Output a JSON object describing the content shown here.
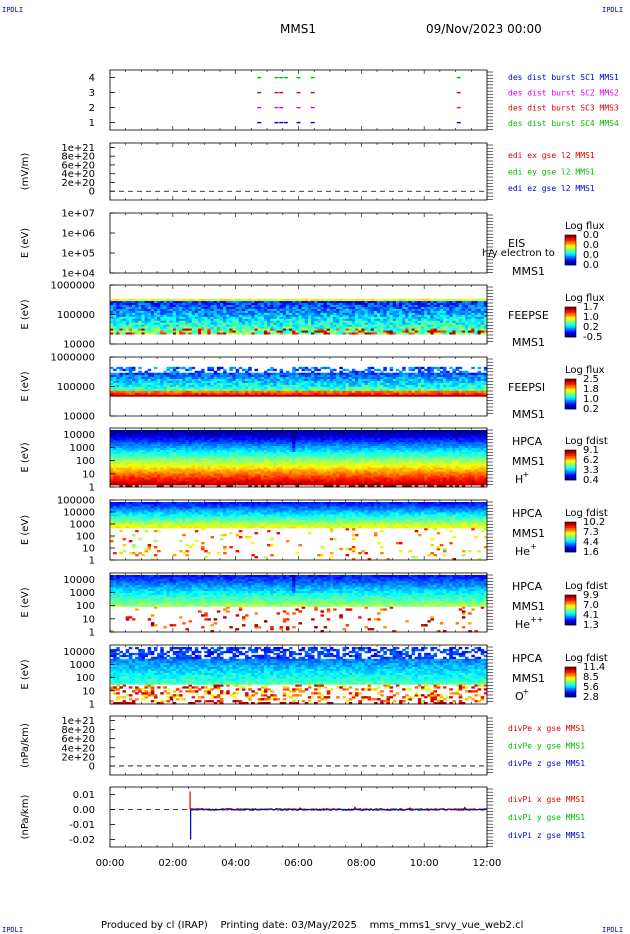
{
  "corner_label": "IPDLI",
  "header": {
    "spacecraft": "MMS1",
    "datetime": "09/Nov/2023 00:00"
  },
  "footer": {
    "produced_by": "Produced by cl (IRAP)",
    "printing_date": "Printing date: 03/May/2025",
    "file": "mms_mms1_srvy_vue_web2.cl"
  },
  "colors": {
    "blue": "#0000cc",
    "magenta": "#dd00dd",
    "red": "#dd0000",
    "green": "#00bb00"
  },
  "chart_data": {
    "type": "multi-panel time series and spectrograms",
    "time_axis": {
      "range_hours": [
        0,
        12
      ],
      "ticks": [
        0,
        2,
        4,
        6,
        8,
        10,
        12
      ],
      "tick_labels": [
        "00:00",
        "02:00",
        "04:00",
        "06:00",
        "08:00",
        "10:00",
        "12:00"
      ]
    },
    "panels": [
      {
        "id": "burst",
        "type": "scatter",
        "ylim": [
          0.5,
          4.5
        ],
        "ticks": [
          1,
          2,
          3,
          4
        ],
        "tick_labels": [
          "1",
          "2",
          "3",
          "4"
        ],
        "legend": [
          {
            "label": "des dist burst SC1 MMS1",
            "color": "#0000cc"
          },
          {
            "label": "des dist burst SC2 MMS2",
            "color": "#dd00dd"
          },
          {
            "label": "des dist burst SC3 MMS3",
            "color": "#dd0000"
          },
          {
            "label": "des dist burst SC4 MMS4",
            "color": "#00bb00"
          }
        ],
        "series": [
          {
            "name": "des dist burst SC1 MMS1",
            "level": 1,
            "color": "#0000cc",
            "times": [
              4.75,
              5.3,
              5.45,
              5.6,
              6.0,
              6.45,
              11.1
            ]
          },
          {
            "name": "des dist burst SC2 MMS2",
            "level": 2,
            "color": "#dd00dd",
            "times": [
              4.75,
              5.3,
              5.45,
              6.0,
              6.45,
              11.1
            ]
          },
          {
            "name": "des dist burst SC3 MMS3",
            "level": 3,
            "color": "#dd0000",
            "times": [
              4.75,
              5.3,
              5.45,
              6.0,
              6.45,
              11.1
            ]
          },
          {
            "name": "des dist burst SC4 MMS4",
            "level": 4,
            "color": "#00bb00",
            "times": [
              4.75,
              5.3,
              5.45,
              5.6,
              6.0,
              6.45,
              11.1
            ]
          }
        ]
      },
      {
        "id": "edi",
        "type": "line",
        "ylabel": "(mV/m)",
        "ylim": [
          -2e+20,
          1.1e+21
        ],
        "ticks": [
          0,
          2e+20,
          4e+20,
          6e+20,
          8e+20,
          1e+21
        ],
        "tick_labels": [
          "0",
          "2e+20",
          "4e+20",
          "6e+20",
          "8e+20",
          "1e+21"
        ],
        "dashed_zero": true,
        "legend": [
          {
            "label": "edi ex gse l2 MMS1",
            "color": "#dd0000"
          },
          {
            "label": "edi ey gse l2 MMS1",
            "color": "#00bb00"
          },
          {
            "label": "edi ez gse l2 MMS1",
            "color": "#0000cc"
          }
        ]
      },
      {
        "id": "eis",
        "type": "heatmap",
        "ylabel": "E (eV)",
        "scale": "log",
        "ylim": [
          10000.0,
          10000000.0
        ],
        "ticks": [
          10000.0,
          100000.0,
          1000000.0,
          10000000.0
        ],
        "tick_labels": [
          "1e+04",
          "1e+05",
          "1e+06",
          "1e+07"
        ],
        "labels": [
          "EIS",
          "MMS1"
        ],
        "overlay_text": "h/y electron to",
        "colorbar": {
          "title": "Log flux",
          "ticks": [
            "0.0",
            "0.0",
            "0.0",
            "0.0"
          ]
        }
      },
      {
        "id": "feepse",
        "type": "heatmap",
        "ylabel": "E (eV)",
        "scale": "log",
        "ylim": [
          10000,
          1000000
        ],
        "ticks": [
          10000,
          100000,
          1000000
        ],
        "tick_labels": [
          "10000",
          "100000",
          "1000000"
        ],
        "labels": [
          "FEEPSE",
          "MMS1"
        ],
        "colorbar": {
          "title": "Log flux",
          "ticks": [
            "1.7",
            "1.0",
            "0.2",
            "-0.5"
          ]
        }
      },
      {
        "id": "feepsi",
        "type": "heatmap",
        "ylabel": "E (eV)",
        "scale": "log",
        "ylim": [
          10000,
          1000000
        ],
        "ticks": [
          10000,
          100000,
          1000000
        ],
        "tick_labels": [
          "10000",
          "100000",
          "1000000"
        ],
        "labels": [
          "FEEPSI",
          "MMS1"
        ],
        "colorbar": {
          "title": "Log flux",
          "ticks": [
            "2.5",
            "1.8",
            "1.0",
            "0.2"
          ]
        }
      },
      {
        "id": "hpca_h",
        "type": "heatmap",
        "ylabel": "E (eV)",
        "scale": "log",
        "ylim": [
          1,
          30000
        ],
        "ticks": [
          1,
          10,
          100,
          1000,
          10000
        ],
        "tick_labels": [
          "1",
          "10",
          "100",
          "1000",
          "10000"
        ],
        "labels": [
          "HPCA",
          "MMS1"
        ],
        "species": "H",
        "species_sup": "+",
        "colorbar": {
          "title": "Log fdist",
          "ticks": [
            "9.1",
            "6.2",
            "3.3",
            "0.4"
          ]
        }
      },
      {
        "id": "hpca_he",
        "type": "heatmap",
        "ylabel": "E (eV)",
        "scale": "log",
        "ylim": [
          1,
          100000
        ],
        "ticks": [
          1,
          10,
          100,
          1000,
          10000,
          100000
        ],
        "tick_labels": [
          "1",
          "10",
          "100",
          "1000",
          "10000",
          "100000"
        ],
        "labels": [
          "HPCA",
          "MMS1"
        ],
        "species": "He",
        "species_sup": "+",
        "colorbar": {
          "title": "Log fdist",
          "ticks": [
            "10.2",
            "7.3",
            "4.4",
            "1.6"
          ]
        }
      },
      {
        "id": "hpca_hepp",
        "type": "heatmap",
        "ylabel": "E (eV)",
        "scale": "log",
        "ylim": [
          1,
          30000
        ],
        "ticks": [
          1,
          10,
          100,
          1000,
          10000
        ],
        "tick_labels": [
          "1",
          "10",
          "100",
          "1000",
          "10000"
        ],
        "labels": [
          "HPCA",
          "MMS1"
        ],
        "species": "He",
        "species_sup": "++",
        "colorbar": {
          "title": "Log fdist",
          "ticks": [
            "9.9",
            "7.0",
            "4.1",
            "1.3"
          ]
        }
      },
      {
        "id": "hpca_o",
        "type": "heatmap",
        "ylabel": "E (eV)",
        "scale": "log",
        "ylim": [
          1,
          30000
        ],
        "ticks": [
          1,
          10,
          100,
          1000,
          10000
        ],
        "tick_labels": [
          "1",
          "10",
          "100",
          "1000",
          "10000"
        ],
        "labels": [
          "HPCA",
          "MMS1"
        ],
        "species": "O",
        "species_sup": "+",
        "colorbar": {
          "title": "Log fdist",
          "ticks": [
            "11.4",
            "8.5",
            "5.6",
            "2.8"
          ]
        }
      },
      {
        "id": "divpe",
        "type": "line",
        "ylabel": "(nPa/km)",
        "ylim": [
          -2e+20,
          1.1e+21
        ],
        "ticks": [
          0,
          2e+20,
          4e+20,
          6e+20,
          8e+20,
          1e+21
        ],
        "tick_labels": [
          "0",
          "2e+20",
          "4e+20",
          "6e+20",
          "8e+20",
          "1e+21"
        ],
        "dashed_zero": true,
        "legend": [
          {
            "label": "divPe x gse MMS1",
            "color": "#dd0000"
          },
          {
            "label": "divPe y gse MMS1",
            "color": "#00bb00"
          },
          {
            "label": "divPe z gse MMS1",
            "color": "#0000cc"
          }
        ]
      },
      {
        "id": "divpi",
        "type": "line",
        "ylabel": "(nPa/km)",
        "ylim": [
          -0.025,
          0.015
        ],
        "ticks": [
          -0.02,
          -0.01,
          0.0,
          0.01
        ],
        "tick_labels": [
          "-0.02",
          "-0.01",
          "0.00",
          "0.01"
        ],
        "dashed_zero": true,
        "legend": [
          {
            "label": "divPi x gse MMS1",
            "color": "#dd0000"
          },
          {
            "label": "divPi y gse MMS1",
            "color": "#00bb00"
          },
          {
            "label": "divPi z gse MMS1",
            "color": "#0000cc"
          }
        ],
        "data_start_hour": 2.55,
        "spike": {
          "time": 2.55,
          "x": 0.012,
          "z": -0.02
        }
      }
    ]
  }
}
